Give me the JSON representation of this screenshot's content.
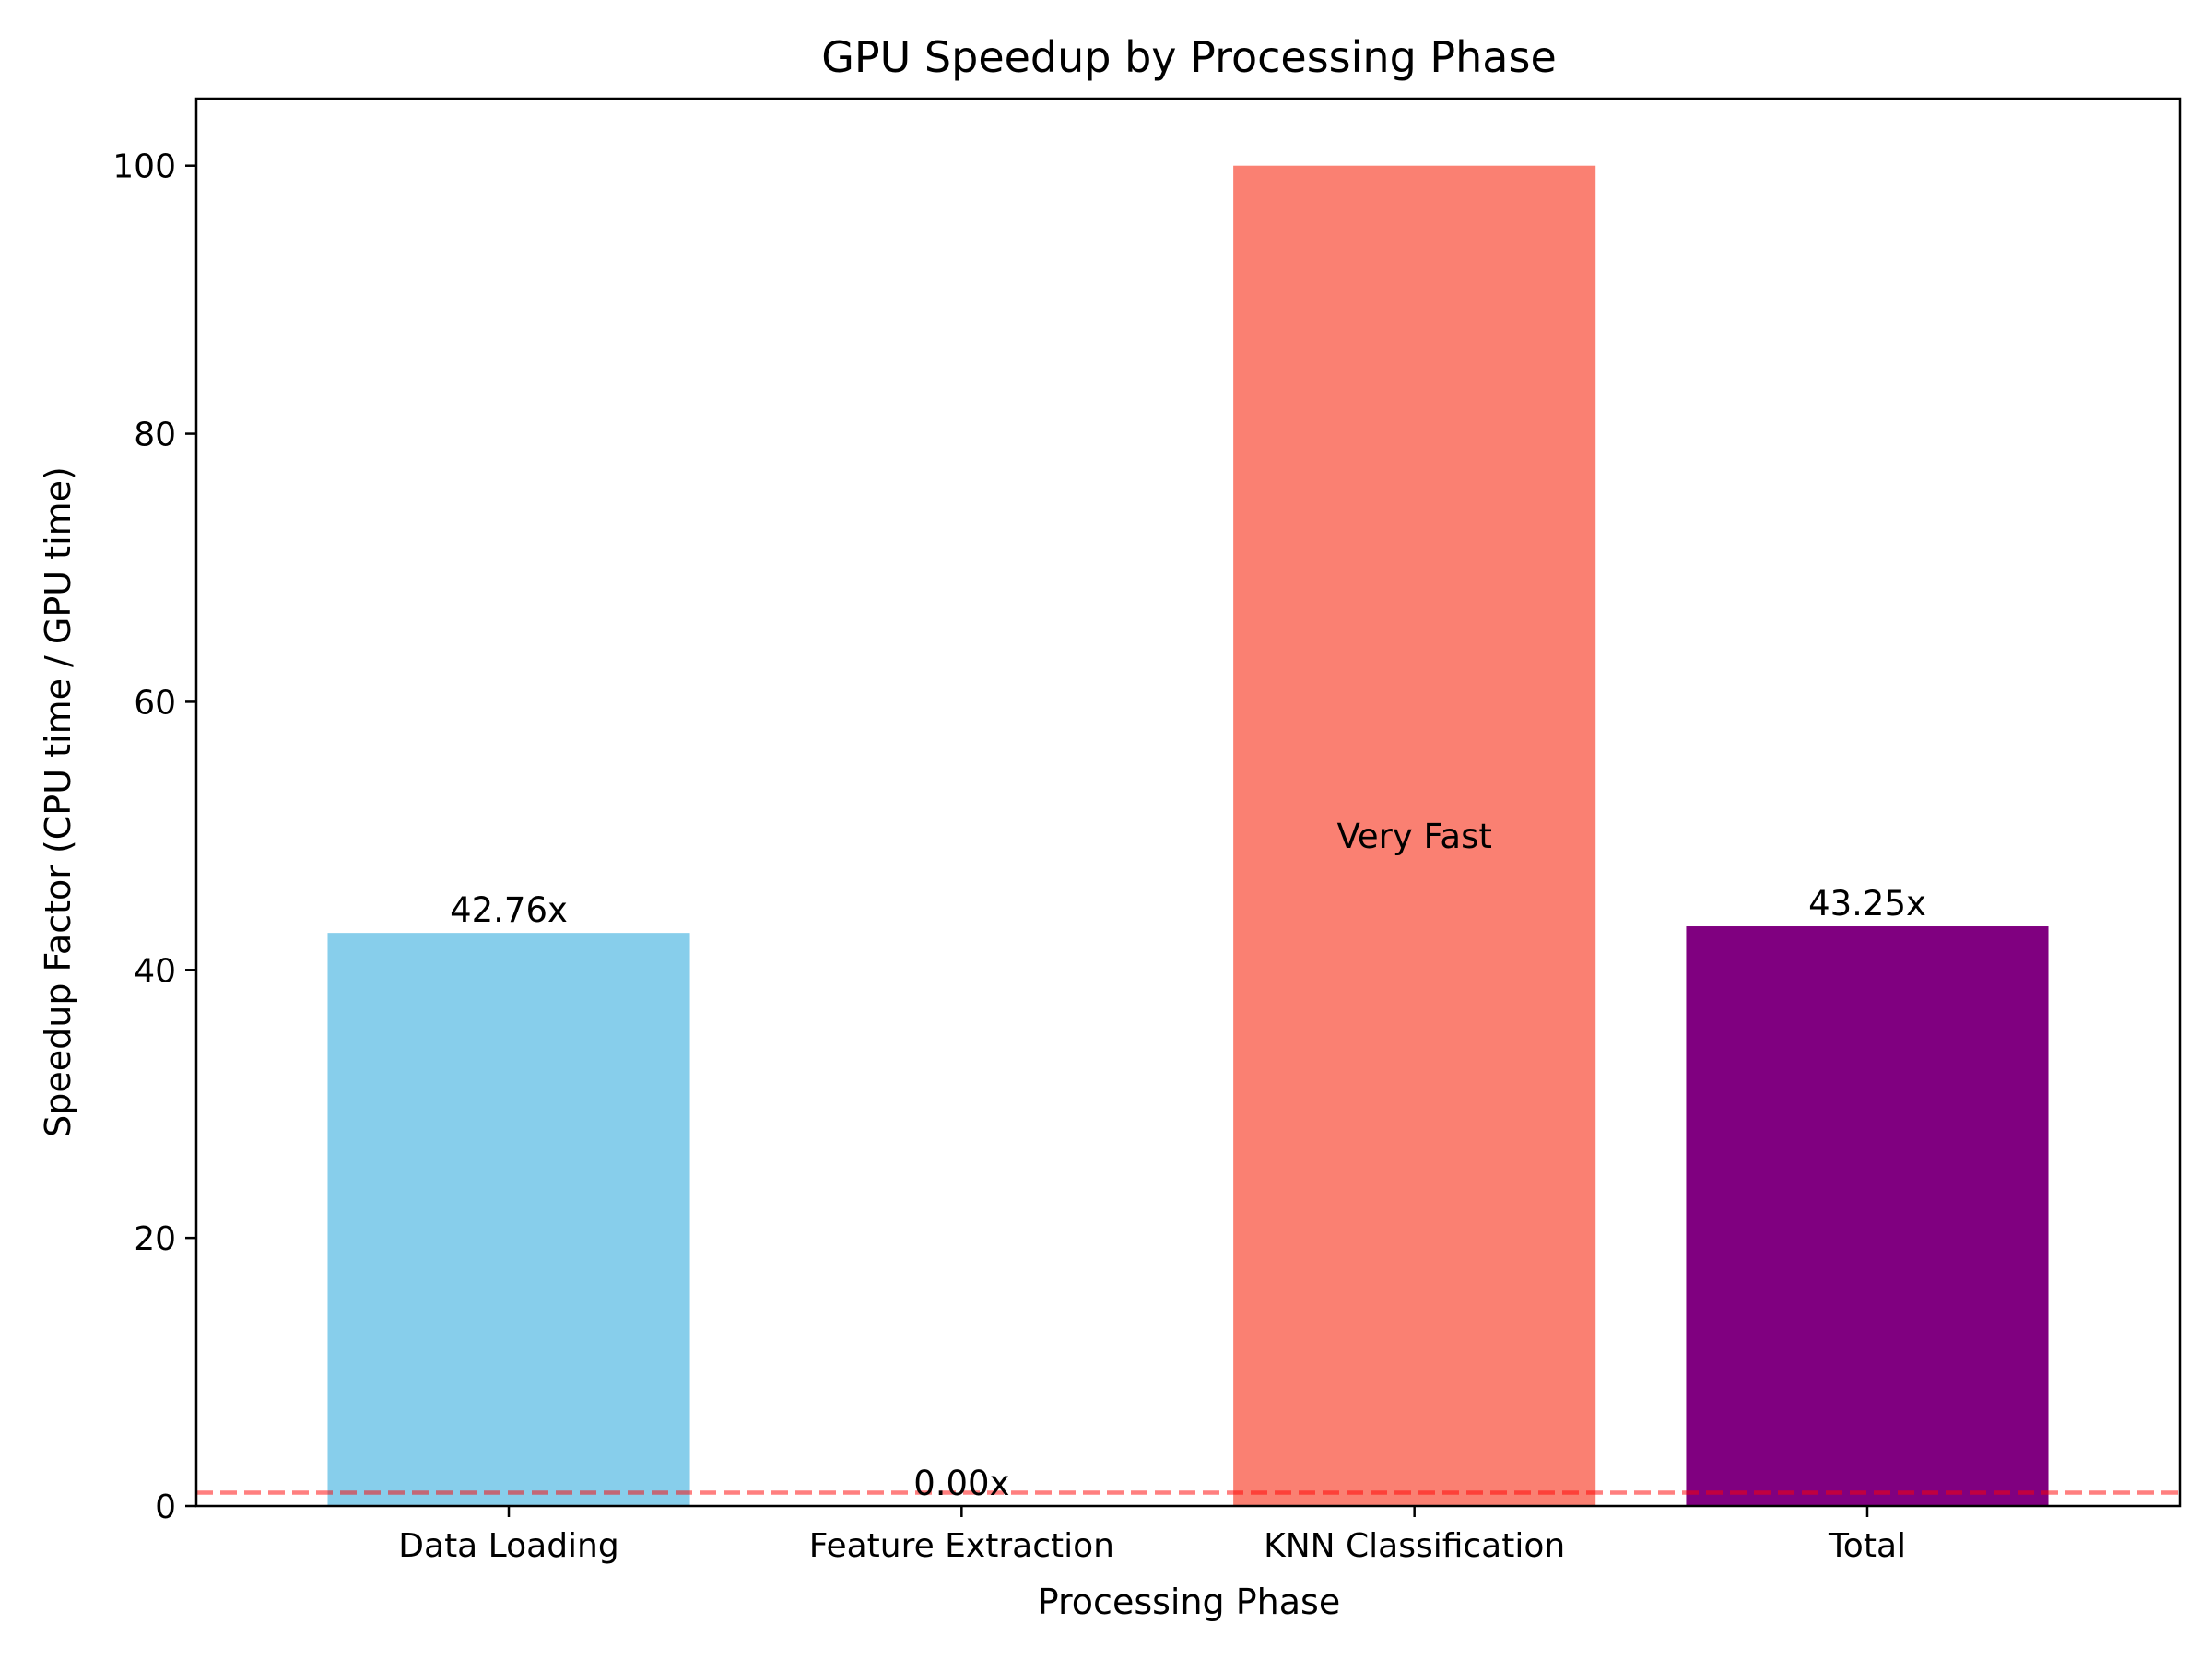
{
  "chart_data": {
    "type": "bar",
    "title": "GPU Speedup by Processing Phase",
    "xlabel": "Processing Phase",
    "ylabel": "Speedup Factor (CPU time / GPU time)",
    "categories": [
      "Data Loading",
      "Feature Extraction",
      "KNN Classification",
      "Total"
    ],
    "values": [
      42.76,
      0.0,
      100,
      43.25
    ],
    "bar_labels": [
      "42.76x",
      "0.00x",
      "Very Fast",
      "43.25x"
    ],
    "bar_colors": [
      "#87CEEB",
      "#90EE90",
      "#FA8072",
      "#800080"
    ],
    "ylim": [
      0,
      105
    ],
    "yticks": [
      0,
      20,
      40,
      60,
      80,
      100
    ],
    "reference_line": {
      "y": 1,
      "color": "#FF0000",
      "style": "dashed",
      "opacity": 0.5
    },
    "grid": false,
    "legend": "none"
  }
}
